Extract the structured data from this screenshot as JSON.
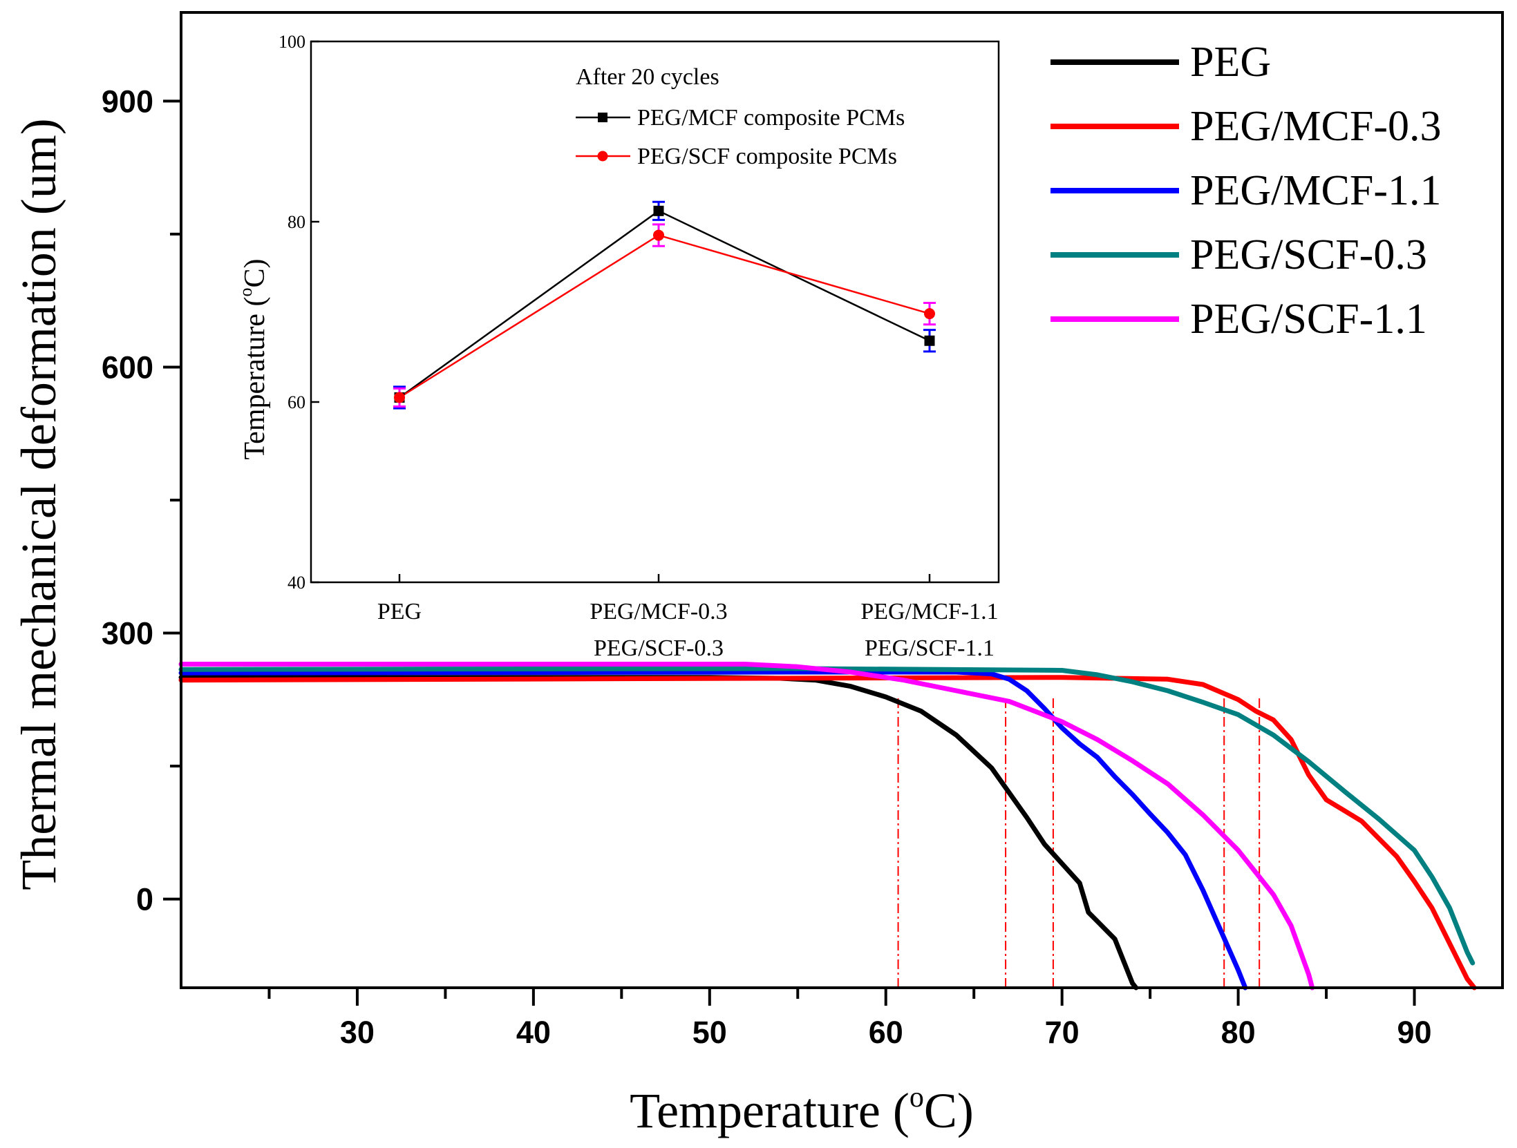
{
  "chart_data": [
    {
      "type": "line",
      "role": "main",
      "title": "",
      "xlabel": "Temperature (",
      "xlabel_sup": "o",
      "xlabel_unit": "C)",
      "ylabel": "Thermal mechanical deformation (um)",
      "xlim": [
        20,
        95
      ],
      "ylim": [
        -100,
        1000
      ],
      "xticks": [
        30,
        40,
        50,
        60,
        70,
        80,
        90
      ],
      "xminor": [
        25,
        35,
        45,
        55,
        65,
        75,
        85
      ],
      "yticks": [
        0,
        300,
        600,
        900
      ],
      "yminor": [
        150,
        450,
        750
      ],
      "legend_position": "top-right",
      "series": [
        {
          "name": "PEG",
          "color": "#000000",
          "points": [
            [
              20,
              250
            ],
            [
              50,
              250
            ],
            [
              54,
              249
            ],
            [
              56,
              247
            ],
            [
              58,
              240
            ],
            [
              60,
              228
            ],
            [
              62,
              212
            ],
            [
              64,
              185
            ],
            [
              66,
              148
            ],
            [
              67,
              120
            ],
            [
              68,
              92
            ],
            [
              69,
              62
            ],
            [
              70,
              40
            ],
            [
              71,
              18
            ],
            [
              71.5,
              -15
            ],
            [
              72,
              -25
            ],
            [
              73,
              -45
            ],
            [
              74,
              -95
            ],
            [
              74.2,
              -100
            ]
          ]
        },
        {
          "name": "PEG/MCF-0.3",
          "color": "#ff0000",
          "points": [
            [
              20,
              247
            ],
            [
              70,
              250
            ],
            [
              76,
              248
            ],
            [
              78,
              242
            ],
            [
              80,
              225
            ],
            [
              81,
              212
            ],
            [
              82,
              202
            ],
            [
              83,
              180
            ],
            [
              84,
              140
            ],
            [
              85,
              112
            ],
            [
              86,
              100
            ],
            [
              87,
              88
            ],
            [
              88,
              68
            ],
            [
              89,
              48
            ],
            [
              90,
              20
            ],
            [
              91,
              -10
            ],
            [
              92,
              -50
            ],
            [
              93,
              -90
            ],
            [
              93.4,
              -100
            ]
          ]
        },
        {
          "name": "PEG/MCF-1.1",
          "color": "#0000ff",
          "points": [
            [
              20,
              255
            ],
            [
              55,
              256
            ],
            [
              64,
              256
            ],
            [
              66,
              254
            ],
            [
              67,
              248
            ],
            [
              68,
              235
            ],
            [
              69,
              215
            ],
            [
              70,
              193
            ],
            [
              71,
              175
            ],
            [
              72,
              160
            ],
            [
              73,
              138
            ],
            [
              74,
              118
            ],
            [
              75,
              96
            ],
            [
              76,
              75
            ],
            [
              77,
              50
            ],
            [
              78,
              10
            ],
            [
              79,
              -35
            ],
            [
              80,
              -80
            ],
            [
              80.4,
              -100
            ]
          ]
        },
        {
          "name": "PEG/SCF-0.3",
          "color": "#008080",
          "points": [
            [
              20,
              259
            ],
            [
              55,
              260
            ],
            [
              70,
              258
            ],
            [
              72,
              253
            ],
            [
              74,
              245
            ],
            [
              76,
              235
            ],
            [
              78,
              222
            ],
            [
              80,
              208
            ],
            [
              82,
              185
            ],
            [
              84,
              155
            ],
            [
              86,
              122
            ],
            [
              88,
              90
            ],
            [
              90,
              55
            ],
            [
              91,
              25
            ],
            [
              92,
              -10
            ],
            [
              93,
              -60
            ],
            [
              93.3,
              -72
            ]
          ]
        },
        {
          "name": "PEG/SCF-1.1",
          "color": "#ff00ff",
          "points": [
            [
              20,
              265
            ],
            [
              52,
              265
            ],
            [
              55,
              262
            ],
            [
              58,
              256
            ],
            [
              61,
              247
            ],
            [
              64,
              235
            ],
            [
              67,
              223
            ],
            [
              70,
              200
            ],
            [
              72,
              180
            ],
            [
              74,
              156
            ],
            [
              76,
              130
            ],
            [
              78,
              95
            ],
            [
              80,
              55
            ],
            [
              81,
              30
            ],
            [
              82,
              5
            ],
            [
              83,
              -30
            ],
            [
              84,
              -85
            ],
            [
              84.2,
              -100
            ]
          ]
        }
      ],
      "guide_lines_x": [
        60.7,
        66.8,
        69.5,
        79.2,
        81.2
      ],
      "guide_color": "#ff0000"
    },
    {
      "type": "line",
      "role": "inset",
      "title": "After 20 cycles",
      "ylabel": "Temperature (",
      "ylabel_sup": "o",
      "ylabel_unit": "C)",
      "ylim": [
        40,
        100
      ],
      "yticks": [
        40,
        60,
        80,
        100
      ],
      "categories": [
        [
          "PEG"
        ],
        [
          "PEG/MCF-0.3",
          "PEG/SCF-0.3"
        ],
        [
          "PEG/MCF-1.1",
          "PEG/SCF-1.1"
        ]
      ],
      "series": [
        {
          "name": "PEG/MCF composite PCMs",
          "color": "#000000",
          "marker": "square",
          "values": [
            60.5,
            81.2,
            66.8
          ],
          "errors": [
            1.2,
            1.0,
            1.2
          ],
          "error_color": "#0000ff"
        },
        {
          "name": "PEG/SCF composite PCMs",
          "color": "#ff0000",
          "marker": "circle",
          "values": [
            60.5,
            78.5,
            69.8
          ],
          "errors": [
            1.0,
            1.2,
            1.2
          ],
          "error_color": "#ff00ff"
        }
      ]
    }
  ]
}
